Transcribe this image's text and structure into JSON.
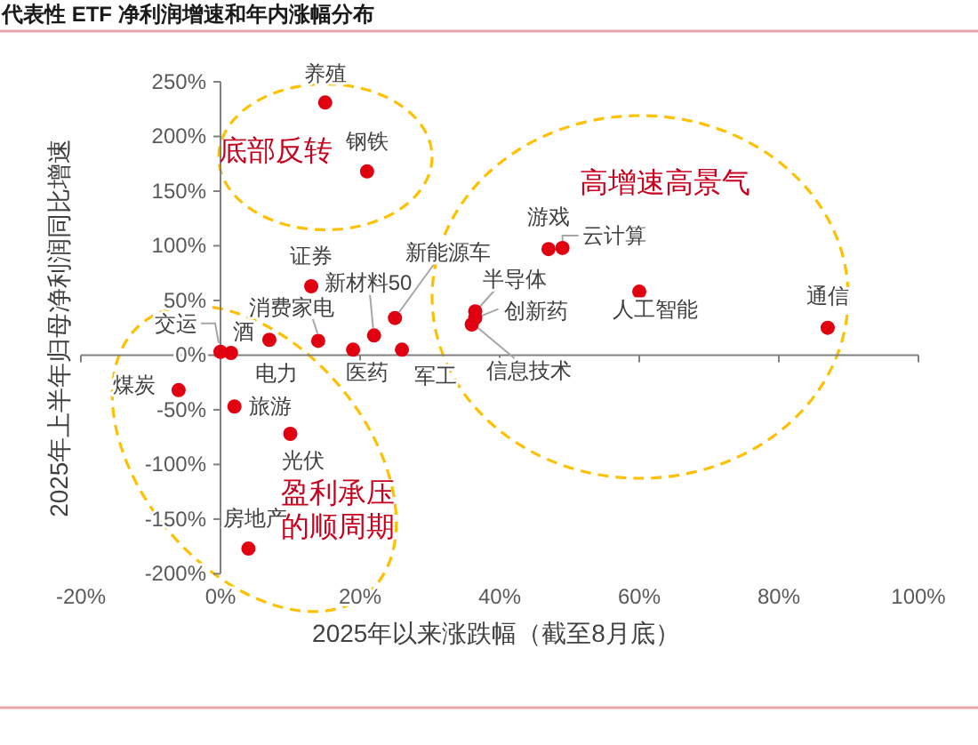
{
  "chart_data": {
    "type": "scatter",
    "title": "代表性 ETF 净利润增速和年内涨幅分布",
    "xlabel": "2025年以来涨跌幅（截至8月底）",
    "ylabel": "2025年上半年归母净利润同比增速",
    "xlim": [
      -20,
      100
    ],
    "ylim": [
      -200,
      250
    ],
    "xticks": [
      {
        "value": -20,
        "label": "-20%"
      },
      {
        "value": 0,
        "label": "0%"
      },
      {
        "value": 20,
        "label": "20%"
      },
      {
        "value": 40,
        "label": "40%"
      },
      {
        "value": 60,
        "label": "60%"
      },
      {
        "value": 80,
        "label": "80%"
      },
      {
        "value": 100,
        "label": "100%"
      }
    ],
    "yticks": [
      {
        "value": -200,
        "label": "-200%"
      },
      {
        "value": -150,
        "label": "-150%"
      },
      {
        "value": -100,
        "label": "-100%"
      },
      {
        "value": -50,
        "label": "-50%"
      },
      {
        "value": 0,
        "label": "0%"
      },
      {
        "value": 50,
        "label": "50%"
      },
      {
        "value": 100,
        "label": "100%"
      },
      {
        "value": 150,
        "label": "150%"
      },
      {
        "value": 200,
        "label": "200%"
      },
      {
        "value": 250,
        "label": "250%"
      }
    ],
    "marker": "circle",
    "series": [
      {
        "name": "养殖",
        "color": "#e0000f",
        "x": [
          15
        ],
        "values": [
          231
        ]
      },
      {
        "name": "钢铁",
        "color": "#e0000f",
        "x": [
          21
        ],
        "values": [
          168
        ]
      },
      {
        "name": "证券",
        "color": "#e0000f",
        "x": [
          13
        ],
        "values": [
          63
        ]
      },
      {
        "name": "新能源车",
        "color": "#e0000f",
        "x": [
          25
        ],
        "values": [
          34
        ]
      },
      {
        "name": "消费家电",
        "color": "#e0000f",
        "x": [
          14
        ],
        "values": [
          13
        ]
      },
      {
        "name": "新材料50",
        "color": "#e0000f",
        "x": [
          22
        ],
        "values": [
          18
        ]
      },
      {
        "name": "电力",
        "color": "#e0000f",
        "x": [
          7
        ],
        "values": [
          14
        ]
      },
      {
        "name": "医药",
        "color": "#e0000f",
        "x": [
          19
        ],
        "values": [
          5
        ]
      },
      {
        "name": "军工",
        "color": "#e0000f",
        "x": [
          26
        ],
        "values": [
          5
        ]
      },
      {
        "name": "交运",
        "color": "#e0000f",
        "x": [
          0
        ],
        "values": [
          3
        ]
      },
      {
        "name": "酒",
        "color": "#e0000f",
        "x": [
          1.5
        ],
        "values": [
          2
        ]
      },
      {
        "name": "煤炭",
        "color": "#e0000f",
        "x": [
          -6
        ],
        "values": [
          -32
        ]
      },
      {
        "name": "旅游",
        "color": "#e0000f",
        "x": [
          2
        ],
        "values": [
          -47
        ]
      },
      {
        "name": "光伏",
        "color": "#e0000f",
        "x": [
          10
        ],
        "values": [
          -72
        ]
      },
      {
        "name": "房地产",
        "color": "#e0000f",
        "x": [
          4
        ],
        "values": [
          -177
        ]
      },
      {
        "name": "半导体",
        "color": "#e0000f",
        "x": [
          36.5
        ],
        "values": [
          40
        ]
      },
      {
        "name": "创新药",
        "color": "#e0000f",
        "x": [
          36.5
        ],
        "values": [
          34
        ]
      },
      {
        "name": "信息技术",
        "color": "#e0000f",
        "x": [
          36
        ],
        "values": [
          28
        ]
      },
      {
        "name": "游戏",
        "color": "#e0000f",
        "x": [
          47
        ],
        "values": [
          97
        ]
      },
      {
        "name": "云计算",
        "color": "#e0000f",
        "x": [
          49
        ],
        "values": [
          98
        ]
      },
      {
        "name": "人工智能",
        "color": "#e0000f",
        "x": [
          60
        ],
        "values": [
          58
        ]
      },
      {
        "name": "通信",
        "color": "#e0000f",
        "x": [
          87
        ],
        "values": [
          25
        ]
      }
    ],
    "annotations": [
      "底部反转",
      "高增速高景气",
      "盈利承压的顺周期"
    ]
  }
}
